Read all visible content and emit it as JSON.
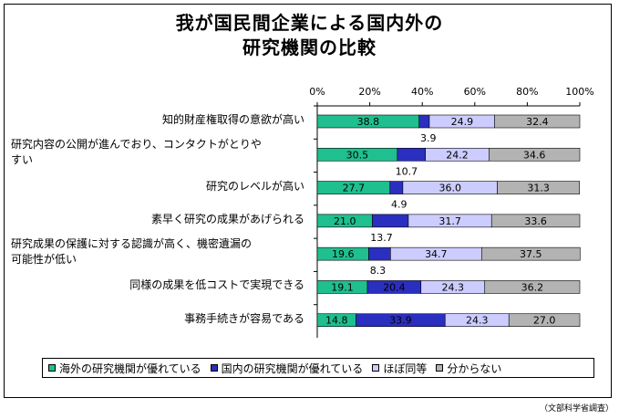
{
  "title_line1": "我が国民間企業による国内外の",
  "title_line2": "研究機関の比較",
  "source": "（文部科学省調査）",
  "chart_data": {
    "type": "bar",
    "orientation": "horizontal",
    "stacked": "percent",
    "xlim": [
      0,
      100
    ],
    "tick_labels": [
      "0%",
      "20%",
      "40%",
      "60%",
      "80%",
      "100%"
    ],
    "tick_values": [
      0,
      20,
      40,
      60,
      80,
      100
    ],
    "grid": false,
    "legend_position": "bottom",
    "categories": [
      "知的財産権取得の意欲が高い",
      "研究内容の公開が進んでおり、コンタクトがとりやすい",
      "研究のレベルが高い",
      "素早く研究の成果があげられる",
      "研究成果の保護に対する認識が高く、機密遺漏の可能性が低い",
      "同様の成果を低コストで実現できる",
      "事務手続きが容易である"
    ],
    "category_lines": [
      [
        "知的財産権取得の意欲が高い"
      ],
      [
        "研究内容の公開が進んでおり、コンタクトがとりや",
        "すい"
      ],
      [
        "研究のレベルが高い"
      ],
      [
        "素早く研究の成果があげられる"
      ],
      [
        "研究成果の保護に対する認識が高く、機密遺漏の",
        "可能性が低い"
      ],
      [
        "同様の成果を低コストで実現できる"
      ],
      [
        "事務手続きが容易である"
      ]
    ],
    "series": [
      {
        "name": "海外の研究機関が優れている",
        "color": "#1fbf8f",
        "values": [
          38.8,
          30.5,
          27.7,
          21.0,
          19.6,
          19.1,
          14.8
        ],
        "labels": [
          "38.8",
          "30.5",
          "27.7",
          "21.0",
          "19.6",
          "19.1",
          "14.8"
        ]
      },
      {
        "name": "国内の研究機関が優れている",
        "color": "#2b2fbf",
        "values": [
          3.9,
          10.7,
          4.9,
          13.7,
          8.3,
          20.4,
          33.9
        ],
        "labels": [
          "3.9",
          "10.7",
          "4.9",
          "13.7",
          "8.3",
          "20.4",
          "33.9"
        ]
      },
      {
        "name": "ほぼ同等",
        "color": "#ccccff",
        "values": [
          24.9,
          24.2,
          36.0,
          31.7,
          34.7,
          24.3,
          24.3
        ],
        "labels": [
          "24.9",
          "24.2",
          "36.0",
          "31.7",
          "34.7",
          "24.3",
          "24.3"
        ]
      },
      {
        "name": "分からない",
        "color": "#b3b3b3",
        "values": [
          32.4,
          34.6,
          31.3,
          33.6,
          37.5,
          36.2,
          27.0
        ],
        "labels": [
          "32.4",
          "34.6",
          "31.3",
          "33.6",
          "37.5",
          "36.2",
          "27.0"
        ]
      }
    ]
  }
}
